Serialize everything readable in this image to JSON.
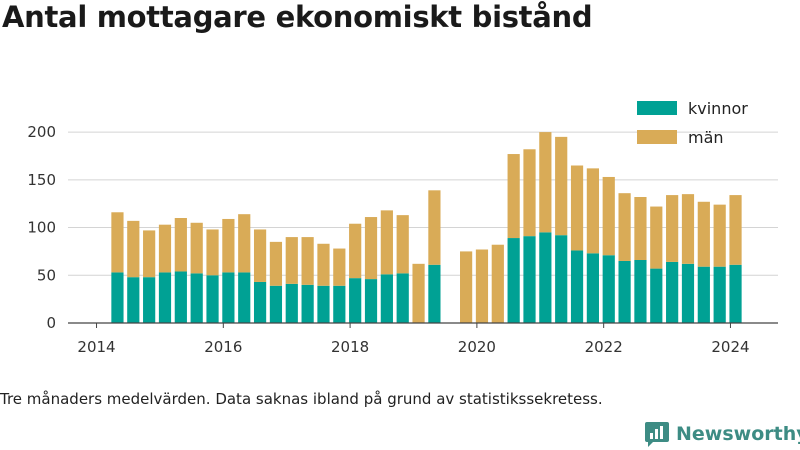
{
  "title": "Antal mottagare ekonomiskt bistånd",
  "note": "Tre månaders medelvärden. Data saknas ibland på grund av statistikssekretess.",
  "brand": {
    "name": "Newsworthy",
    "icon": "newsworthy-logo-icon",
    "color": "#3d8c84"
  },
  "chart_data": {
    "type": "bar",
    "stacked": true,
    "x_unit": "year",
    "xlim": [
      2013.55,
      2024.75
    ],
    "ylim": [
      0,
      220
    ],
    "xticks": [
      2014,
      2016,
      2018,
      2020,
      2022,
      2024
    ],
    "xtick_labels": [
      "2014",
      "2016",
      "2018",
      "2020",
      "2022",
      "2024"
    ],
    "yticks": [
      0,
      50,
      100,
      150,
      200
    ],
    "ytick_labels": [
      "0",
      "50",
      "100",
      "150",
      "200"
    ],
    "grid": "horizontal",
    "legend_position": "top-right",
    "x": [
      2014.33,
      2014.58,
      2014.83,
      2015.08,
      2015.33,
      2015.58,
      2015.83,
      2016.08,
      2016.33,
      2016.58,
      2016.83,
      2017.08,
      2017.33,
      2017.58,
      2017.83,
      2018.08,
      2018.33,
      2018.58,
      2018.83,
      2019.08,
      2019.33,
      2019.83,
      2020.08,
      2020.33,
      2020.58,
      2020.83,
      2021.08,
      2021.33,
      2021.58,
      2021.83,
      2022.08,
      2022.33,
      2022.58,
      2022.83,
      2023.08,
      2023.33,
      2023.58,
      2023.83,
      2024.08
    ],
    "series": [
      {
        "name": "kvinnor",
        "color": "#00a194",
        "values": [
          53,
          48,
          48,
          53,
          54,
          52,
          50,
          53,
          53,
          43,
          39,
          41,
          40,
          39,
          39,
          47,
          46,
          51,
          52,
          null,
          61,
          null,
          null,
          null,
          89,
          91,
          95,
          92,
          76,
          73,
          71,
          65,
          66,
          57,
          64,
          62,
          59,
          59,
          61
        ]
      },
      {
        "name": "män",
        "color": "#d9ab57",
        "values": [
          63,
          59,
          49,
          50,
          56,
          53,
          48,
          56,
          61,
          55,
          46,
          49,
          50,
          44,
          39,
          57,
          65,
          67,
          61,
          62,
          78,
          75,
          77,
          82,
          88,
          91,
          105,
          103,
          89,
          89,
          82,
          71,
          66,
          65,
          70,
          73,
          68,
          65,
          73
        ]
      }
    ]
  }
}
